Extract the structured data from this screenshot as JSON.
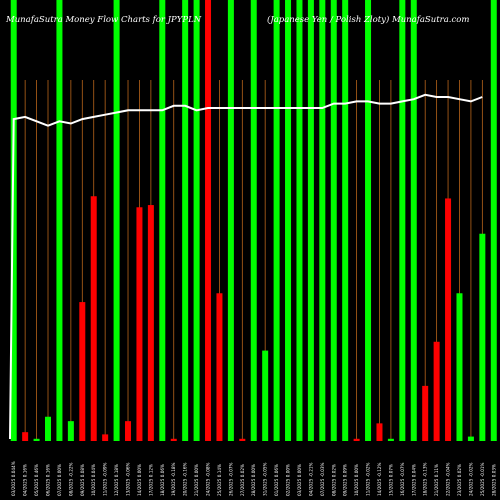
{
  "header": {
    "left": "MunafaSutra  Money Flow  Charts for JPYPLN",
    "right": "(Japanese Yen  / Polish Zloty) MunafaSutra.com"
  },
  "colors": {
    "background": "#000000",
    "green_bar": "#00ff00",
    "red_bar": "#ff0000",
    "grid": "#b8651b",
    "line": "#ffffff",
    "header_text": "#ffffff"
  },
  "chart_data": {
    "type": "bar",
    "title": "MunafaSutra  Money Flow  Charts for JPYPLN",
    "subtitle": "(Japanese Yen  / Polish Zloty) MunafaSutra.com",
    "categories": [
      "03/2025 0.044%",
      "04/2025 0.16%",
      "05/2025 0.46%",
      "06/2025 0.16%",
      "07/2025 0.00%",
      "08/2025 -0.22%",
      "09/2025 0.08%",
      "10/2025 0.04%",
      "11/2025 -0.09%",
      "12/2025 0.18%",
      "13/2025 -0.06%",
      "14/2025 0.00%",
      "17/2025 0.12%",
      "18/2025 0.06%",
      "19/2025 -0.18%",
      "20/2025 -0.16%",
      "21/2025 0.00%",
      "24/2025 -0.08%",
      "25/2025 0.14%",
      "26/2025 -0.07%",
      "27/2025 0.02%",
      "28/2025 0.00%",
      "31/2025 -0.05%",
      "01/2025 0.06%",
      "02/2025 0.00%",
      "03/2025 0.00%",
      "04/2025 -0.21%",
      "07/2025 -0.03%",
      "08/2025 0.02%",
      "09/2025 0.09%",
      "10/2025 0.00%",
      "11/2025 -0.02%",
      "14/2025 -0.12%",
      "15/2025 0.07%",
      "16/2025 -0.07%",
      "17/2025 0.04%",
      "18/2025 -0.13%",
      "21/2025 0.11%",
      "22/2025 -0.04%",
      "23/2025 0.02%",
      "24/2025 -0.02%",
      "25/2025 -0.01%",
      "28/2025 0.03%"
    ],
    "series": [
      {
        "values": [
          100,
          2,
          0.5,
          5.5,
          100,
          4.5,
          31.5,
          55.5,
          1.5,
          100,
          4.5,
          53,
          53.5,
          100,
          0.5,
          100,
          100,
          100,
          33.5,
          100,
          0.5,
          100,
          20.5,
          100,
          100,
          100,
          100,
          100,
          100,
          100,
          0.5,
          100,
          4,
          0.5,
          100,
          100,
          12.5,
          22.5,
          55,
          33.5,
          1,
          47,
          100
        ],
        "colors": [
          "green",
          "red",
          "green",
          "green",
          "green",
          "green",
          "red",
          "red",
          "red",
          "green",
          "red",
          "red",
          "red",
          "green",
          "red",
          "green",
          "green",
          "red",
          "red",
          "green",
          "red",
          "green",
          "green",
          "green",
          "green",
          "green",
          "green",
          "green",
          "green",
          "green",
          "red",
          "green",
          "red",
          "green",
          "green",
          "green",
          "red",
          "red",
          "red",
          "green",
          "green",
          "green",
          "green"
        ]
      }
    ],
    "line": [
      73,
      73.5,
      72.5,
      71.5,
      72.5,
      72,
      73,
      73.5,
      74,
      74.5,
      75,
      75,
      75,
      75,
      76,
      76,
      75,
      75.5,
      75.5,
      75.5,
      75.5,
      75.5,
      75.5,
      75.5,
      75.5,
      75.5,
      75.5,
      75.5,
      76.5,
      76.5,
      77,
      77,
      76.5,
      76.5,
      77,
      77.5,
      78.5,
      78,
      78,
      77.5,
      77,
      78
    ],
    "line_x": [
      0.5,
      1.5,
      2.5,
      3.5,
      4.5,
      5.5,
      6.5,
      7.5,
      8.5,
      9.5,
      10.5,
      11.5,
      12.5,
      13.5,
      14.5,
      15.5,
      16.5,
      17.5,
      18.5,
      19.5,
      20.5,
      21.5,
      22.5,
      23.5,
      24.5,
      25.5,
      26.5,
      27.5,
      28.5,
      29.5,
      30.5,
      31.5,
      32.5,
      33.5,
      34.5,
      35.5,
      36.5,
      37.5,
      38.5,
      39.5,
      40.5,
      41.5
    ],
    "ylim": [
      0,
      100
    ],
    "grid": true
  }
}
